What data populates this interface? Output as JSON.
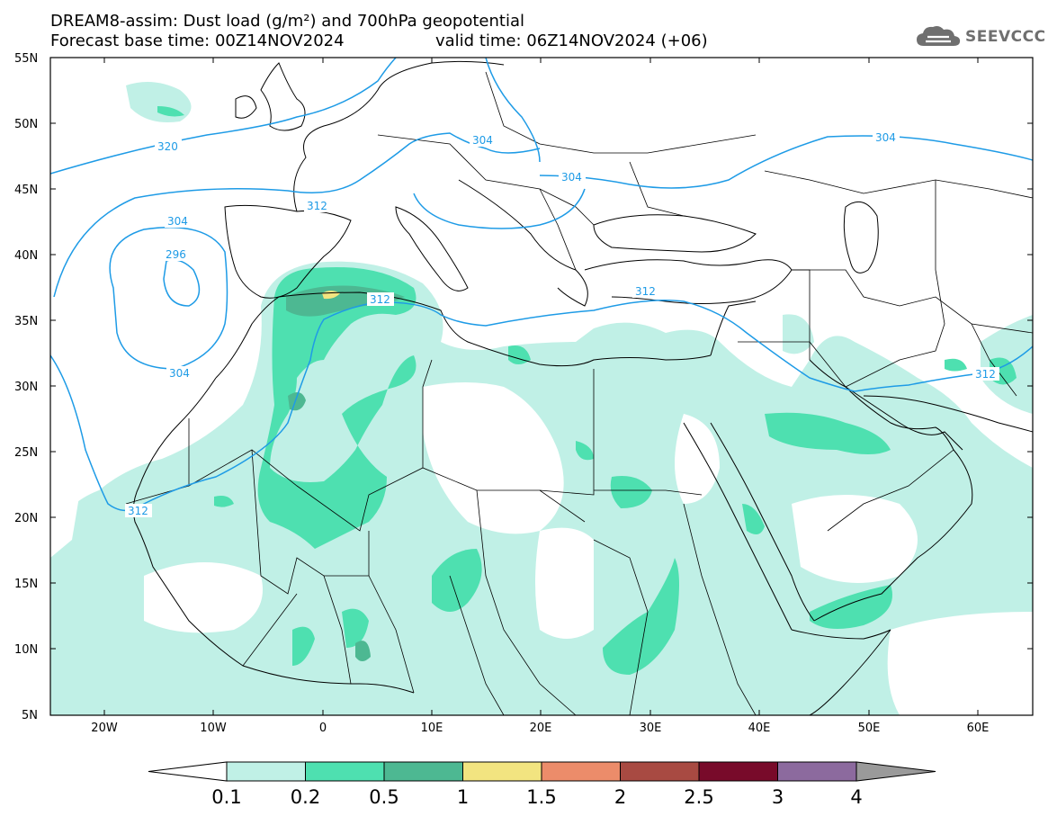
{
  "header": {
    "title_line1": "DREAM8-assim: Dust load (g/m²) and 700hPa geopotential",
    "title_line2_left": "Forecast base time: 00Z14NOV2024",
    "title_line2_right": "valid time: 06Z14NOV2024 (+06)"
  },
  "logo": {
    "text": "SEEVCCC",
    "icon": "cloud-icon"
  },
  "axes": {
    "lat_labels": [
      "55N",
      "50N",
      "45N",
      "40N",
      "35N",
      "30N",
      "25N",
      "20N",
      "15N",
      "10N",
      "5N"
    ],
    "lon_labels": [
      "20W",
      "10W",
      "0",
      "10E",
      "20E",
      "30E",
      "40E",
      "50E",
      "60E"
    ]
  },
  "contours": {
    "color": "#1e9be6",
    "labels": [
      "320",
      "312",
      "304",
      "296",
      "304",
      "312",
      "304",
      "304",
      "312",
      "312",
      "304",
      "312"
    ]
  },
  "colorbar": {
    "labels": [
      "0.1",
      "0.2",
      "0.5",
      "1",
      "1.5",
      "2",
      "2.5",
      "3",
      "4"
    ],
    "colors": [
      "#c0f0e6",
      "#4ee0b0",
      "#4db892",
      "#f2e480",
      "#ec8c6a",
      "#a84a42",
      "#780a2a",
      "#8c6a9e"
    ],
    "over_color": "#9a9a9a",
    "under_color": "#ffffff"
  }
}
